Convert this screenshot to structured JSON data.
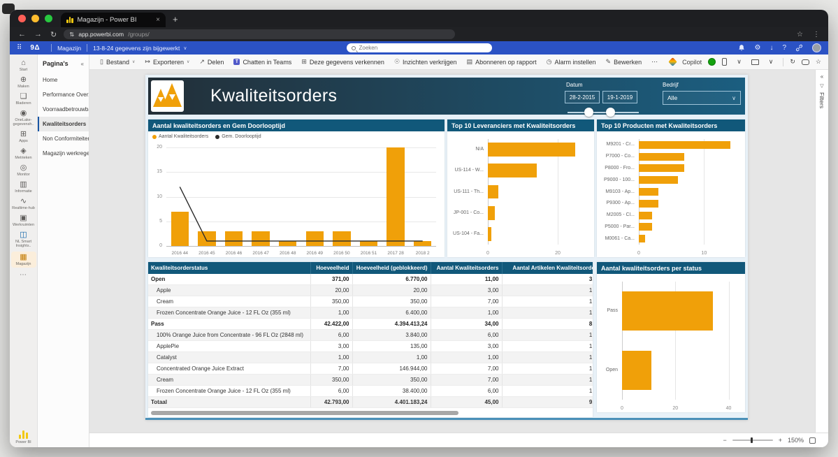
{
  "browser": {
    "tab_title": "Magazijn - Power BI",
    "url_domain": "app.powerbi.com",
    "url_path": "/groups/"
  },
  "top_bar": {
    "logo_text": "9Δ",
    "workspace": "Magazijn",
    "update_status": "13-8-24 gegevens zijn bijgewerkt",
    "search_placeholder": "Zoeken"
  },
  "toolbar": {
    "items": [
      {
        "name": "bestand",
        "label": "Bestand",
        "icon": "▯",
        "chevron": true
      },
      {
        "name": "exporteren",
        "label": "Exporteren",
        "icon": "↦",
        "chevron": true
      },
      {
        "name": "delen",
        "label": "Delen",
        "icon": "↗"
      },
      {
        "name": "chatten-in-teams",
        "label": "Chatten in Teams",
        "icon": "T",
        "teams": true
      },
      {
        "name": "gegevens-verkennen",
        "label": "Deze gegevens verkennen",
        "icon": "⊞"
      },
      {
        "name": "inzichten-verkrijgen",
        "label": "Inzichten verkrijgen",
        "icon": "☉"
      },
      {
        "name": "abonneren-op-rapport",
        "label": "Abonneren op rapport",
        "icon": "▤"
      },
      {
        "name": "alarm-instellen",
        "label": "Alarm instellen",
        "icon": "◷"
      },
      {
        "name": "bewerken",
        "label": "Bewerken",
        "icon": "✎"
      },
      {
        "name": "meer-opties",
        "label": "⋯",
        "icon": ""
      }
    ],
    "copilot_label": "Copilot"
  },
  "nav_rail": {
    "items": [
      {
        "name": "start",
        "label": "Start",
        "icon": "⌂"
      },
      {
        "name": "maken",
        "label": "Maken",
        "icon": "⊕"
      },
      {
        "name": "bladeren",
        "label": "Bladeren",
        "icon": "❏"
      },
      {
        "name": "onelake",
        "label": "OneLake-gegevensh..",
        "icon": "◉"
      },
      {
        "name": "apps",
        "label": "Apps",
        "icon": "⊞"
      },
      {
        "name": "metrieken",
        "label": "Metrieken",
        "icon": "◈"
      },
      {
        "name": "monitor",
        "label": "Monitor",
        "icon": "◎"
      },
      {
        "name": "informatie",
        "label": "Informatie",
        "icon": "▥"
      },
      {
        "name": "realtime-hub",
        "label": "Realtime-hub",
        "icon": "∿"
      },
      {
        "name": "werkruimten",
        "label": "Werkruimten",
        "icon": "▣"
      },
      {
        "name": "nl-smart-insights",
        "label": "NL Smart Insights..",
        "icon": "◫",
        "color": "#0b62a8"
      },
      {
        "name": "magazijn",
        "label": "Magazijn",
        "icon": "▦",
        "active": true
      }
    ],
    "more": "⋯",
    "powerbi_label": "Power BI"
  },
  "pages_panel": {
    "title": "Pagina's",
    "collapse_icon": "«",
    "items": [
      {
        "label": "Home",
        "selected": false
      },
      {
        "label": "Performance Overzicht",
        "selected": false
      },
      {
        "label": "Voorraadbetrouwbaarh...",
        "selected": false
      },
      {
        "label": "Kwaliteitsorders",
        "selected": true
      },
      {
        "label": "Non Conformiteiten",
        "selected": false
      },
      {
        "label": "Magazijn werkregels",
        "selected": false
      }
    ]
  },
  "report": {
    "title": "Kwaliteitsorders",
    "filters": {
      "date_label": "Datum",
      "date_from": "28-2-2015",
      "date_to": "19-1-2019",
      "company_label": "Bedrijf",
      "company_value": "Alle"
    }
  },
  "chart_data": [
    {
      "type": "combo-column-line",
      "title": "Aantal kwaliteitsorders en Gem Doorlooptijd",
      "categories": [
        "2016 44",
        "2016 45",
        "2016 46",
        "2016 47",
        "2016 48",
        "2016 49",
        "2016 50",
        "2016 51",
        "2017 28",
        "2018 2"
      ],
      "series": [
        {
          "name": "Aantal Kwaliteitsorders",
          "type": "column",
          "color": "#f0a009",
          "values": [
            7,
            3,
            3,
            3,
            1,
            3,
            3,
            1,
            20,
            1
          ]
        },
        {
          "name": "Gem. Doorlooptijd",
          "type": "line",
          "color": "#2b2b2b",
          "values": [
            12,
            1,
            1,
            1,
            1,
            1,
            1,
            1,
            1,
            1
          ]
        }
      ],
      "ylim": [
        0,
        20
      ],
      "yticks": [
        0,
        5,
        10,
        15,
        20
      ],
      "legend_position": "top",
      "grid": true
    },
    {
      "type": "bar",
      "orientation": "horizontal",
      "title": "Top 10 Leveranciers met Kwaliteitsorders",
      "categories": [
        "N/A",
        "US-114 - W...",
        "US-111 - Th...",
        "JP-001 - Co...",
        "US-104 - Fa..."
      ],
      "values": [
        25,
        14,
        3,
        2,
        1
      ],
      "xlim": [
        0,
        28
      ],
      "xticks": [
        0,
        20
      ],
      "color": "#f0a009"
    },
    {
      "type": "bar",
      "orientation": "horizontal",
      "title": "Top 10 Producten met Kwaliteitsorders",
      "categories": [
        "M9201 - Cr...",
        "P7000 - Co...",
        "P8000 - Fro...",
        "P9000 - 100...",
        "M9103 - Ap...",
        "P9300 - Ap...",
        "M2005 - Cl...",
        "P5000 - Par...",
        "M0061 - Ca..."
      ],
      "values": [
        14,
        7,
        7,
        6,
        3,
        3,
        2,
        2,
        1
      ],
      "xlim": [
        0,
        15
      ],
      "xticks": [
        0,
        10
      ],
      "color": "#f0a009"
    },
    {
      "type": "bar",
      "orientation": "horizontal",
      "title": "Aantal kwaliteitsorders per status",
      "categories": [
        "Pass",
        "Open"
      ],
      "values": [
        34,
        11
      ],
      "xlim": [
        0,
        43
      ],
      "xticks": [
        0,
        20,
        40
      ],
      "color": "#f0a009"
    }
  ],
  "table": {
    "headers": [
      "Kwaliteitsorderstatus",
      "Hoeveelheid",
      "Hoeveelheid (geblokkeerd)",
      "Aantal Kwaliteitsorders",
      "Aantal Artikelen Kwaliteitsorders"
    ],
    "rows": [
      {
        "label": "Open",
        "style": "group",
        "values": [
          "371,00",
          "6.770,00",
          "11,00",
          "3,00"
        ]
      },
      {
        "label": "Apple",
        "style": "item",
        "values": [
          "20,00",
          "20,00",
          "3,00",
          "1,00"
        ]
      },
      {
        "label": "Cream",
        "style": "item",
        "values": [
          "350,00",
          "350,00",
          "7,00",
          "1,00"
        ]
      },
      {
        "label": "Frozen Concentrate Orange Juice - 12 FL Oz (355 ml)",
        "style": "item",
        "values": [
          "1,00",
          "6.400,00",
          "1,00",
          "1,00"
        ]
      },
      {
        "label": "Pass",
        "style": "group",
        "values": [
          "42.422,00",
          "4.394.413,24",
          "34,00",
          "8,00"
        ]
      },
      {
        "label": "100% Orange Juice from Concentrate - 96 FL Oz (2848 ml)",
        "style": "item",
        "values": [
          "6,00",
          "3.840,00",
          "6,00",
          "1,00"
        ]
      },
      {
        "label": "ApplePie",
        "style": "item",
        "values": [
          "3,00",
          "135,00",
          "3,00",
          "1,00"
        ]
      },
      {
        "label": "Catalyst",
        "style": "item",
        "values": [
          "1,00",
          "1,00",
          "1,00",
          "1,00"
        ]
      },
      {
        "label": "Concentrated Orange Juice Extract",
        "style": "item",
        "values": [
          "7,00",
          "146.944,00",
          "7,00",
          "1,00"
        ]
      },
      {
        "label": "Cream",
        "style": "item",
        "values": [
          "350,00",
          "350,00",
          "7,00",
          "1,00"
        ]
      },
      {
        "label": "Frozen Concentrate Orange Juice - 12 FL Oz (355 ml)",
        "style": "item",
        "values": [
          "6,00",
          "38.400,00",
          "6,00",
          "1,00"
        ]
      },
      {
        "label": "Totaal",
        "style": "total",
        "values": [
          "42.793,00",
          "4.401.183,24",
          "45,00",
          "9,00"
        ]
      }
    ]
  },
  "filters_pane": {
    "label": "Filters"
  },
  "status_bar": {
    "zoom_level": "150%"
  }
}
